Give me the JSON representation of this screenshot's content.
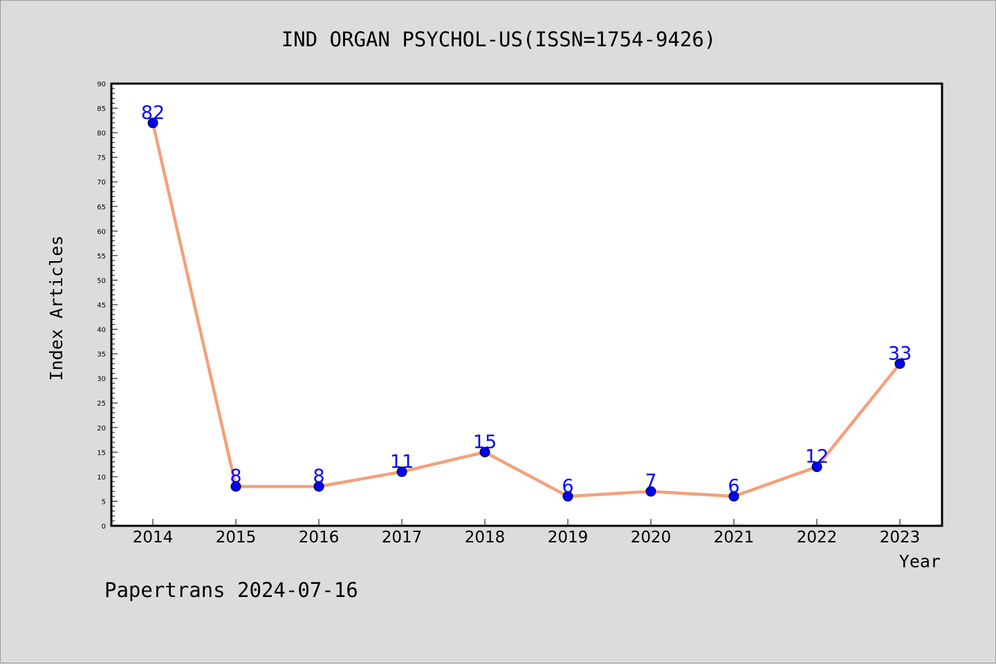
{
  "chart_data": {
    "type": "line",
    "title": "IND ORGAN PSYCHOL-US(ISSN=1754-9426)",
    "xlabel": "Year",
    "ylabel": "Index Articles",
    "categories": [
      "2014",
      "2015",
      "2016",
      "2017",
      "2018",
      "2019",
      "2020",
      "2021",
      "2022",
      "2023"
    ],
    "series": [
      {
        "values": [
          82,
          8,
          8,
          11,
          15,
          6,
          7,
          6,
          12,
          33
        ]
      }
    ],
    "ylim": [
      0,
      90
    ],
    "yticks": [
      0,
      5,
      10,
      15,
      20,
      25,
      30,
      35,
      40,
      45,
      50,
      55,
      60,
      65,
      70,
      75,
      80,
      85,
      90
    ],
    "grid": false,
    "legend": "none",
    "colors": {
      "background": "#dcdcdc",
      "plot_background": "#ffffff",
      "line": "#f4a07a",
      "marker": "#0000ff",
      "data_label": "#0000ff"
    }
  },
  "footer": "Papertrans 2024-07-16"
}
